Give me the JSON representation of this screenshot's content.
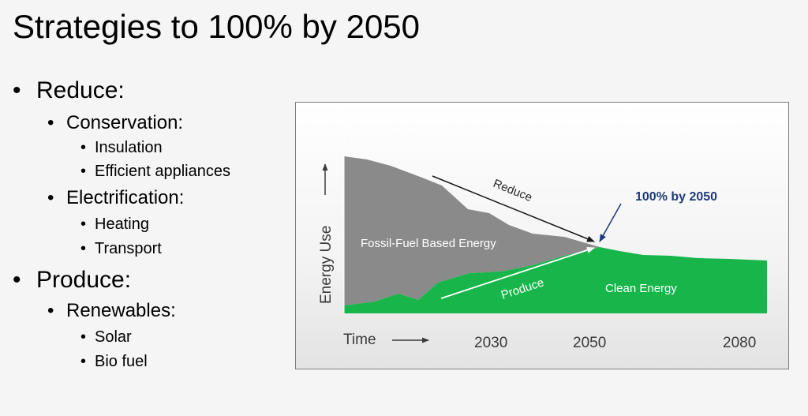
{
  "slide": {
    "title": "Strategies to 100% by 2050"
  },
  "bullets": [
    {
      "level": 1,
      "text": "Reduce:"
    },
    {
      "level": 2,
      "text": "Conservation:"
    },
    {
      "level": 3,
      "text": "Insulation"
    },
    {
      "level": 3,
      "text": "Efficient appliances"
    },
    {
      "level": 2,
      "text": "Electrification:"
    },
    {
      "level": 3,
      "text": "Heating"
    },
    {
      "level": 3,
      "text": "Transport"
    },
    {
      "level": 1,
      "text": "Produce:"
    },
    {
      "level": 2,
      "text": "Renewables:"
    },
    {
      "level": 3,
      "text": "Solar"
    },
    {
      "level": 3,
      "text": "Bio fuel"
    }
  ],
  "diagram": {
    "y_axis_label": "Energy Use",
    "x_axis_label": "Time",
    "x_ticks": [
      "2030",
      "2050",
      "2080"
    ],
    "fossil_label": "Fossil-Fuel Based Energy",
    "clean_label": "Clean Energy",
    "reduce_label": "Reduce",
    "produce_label": "Produce",
    "target_label": "100% by 2050",
    "colors": {
      "fossil": "#8a8a8a",
      "clean": "#18b64a",
      "target": "#1f3a7a",
      "axis": "#3a3a3a"
    }
  }
}
